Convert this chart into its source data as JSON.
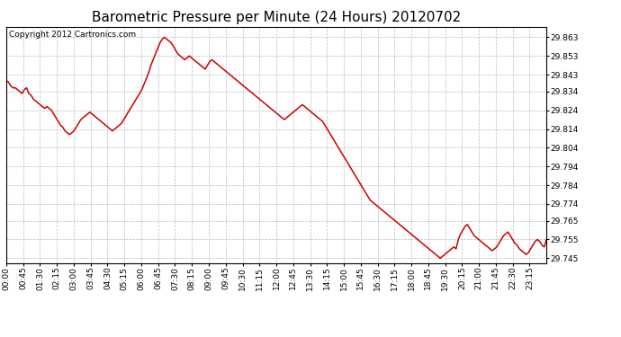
{
  "title": "Barometric Pressure per Minute (24 Hours) 20120702",
  "copyright_text": "Copyright 2012 Cartronics.com",
  "line_color": "#cc0000",
  "background_color": "#ffffff",
  "grid_color": "#bbbbbb",
  "x_tick_labels": [
    "00:00",
    "00:45",
    "01:30",
    "02:15",
    "03:00",
    "03:45",
    "04:30",
    "05:15",
    "06:00",
    "06:45",
    "07:30",
    "08:15",
    "09:00",
    "09:45",
    "10:30",
    "11:15",
    "12:00",
    "12:45",
    "13:30",
    "14:15",
    "15:00",
    "15:45",
    "16:30",
    "17:15",
    "18:00",
    "18:45",
    "19:30",
    "20:15",
    "21:00",
    "21:45",
    "22:30",
    "23:15"
  ],
  "y_tick_labels": [
    29.745,
    29.755,
    29.765,
    29.774,
    29.784,
    29.794,
    29.804,
    29.814,
    29.824,
    29.834,
    29.843,
    29.853,
    29.863
  ],
  "ylim": [
    29.7425,
    29.8685
  ],
  "title_fontsize": 11,
  "copyright_fontsize": 6.5,
  "tick_fontsize": 6.5,
  "line_width": 1.1,
  "pressure_data": [
    29.84,
    29.839,
    29.837,
    29.836,
    29.836,
    29.835,
    29.834,
    29.833,
    29.835,
    29.836,
    29.833,
    29.832,
    29.83,
    29.829,
    29.828,
    29.827,
    29.826,
    29.825,
    29.826,
    29.825,
    29.824,
    29.822,
    29.82,
    29.818,
    29.816,
    29.815,
    29.813,
    29.812,
    29.811,
    29.812,
    29.813,
    29.815,
    29.817,
    29.819,
    29.82,
    29.821,
    29.822,
    29.823,
    29.822,
    29.821,
    29.82,
    29.819,
    29.818,
    29.817,
    29.816,
    29.815,
    29.814,
    29.813,
    29.814,
    29.815,
    29.816,
    29.817,
    29.819,
    29.821,
    29.823,
    29.825,
    29.827,
    29.829,
    29.831,
    29.833,
    29.835,
    29.838,
    29.841,
    29.844,
    29.848,
    29.851,
    29.854,
    29.857,
    29.86,
    29.862,
    29.863,
    29.862,
    29.861,
    29.86,
    29.858,
    29.856,
    29.854,
    29.853,
    29.852,
    29.851,
    29.852,
    29.853,
    29.852,
    29.851,
    29.85,
    29.849,
    29.848,
    29.847,
    29.846,
    29.848,
    29.85,
    29.851,
    29.85,
    29.849,
    29.848,
    29.847,
    29.846,
    29.845,
    29.844,
    29.843,
    29.842,
    29.841,
    29.84,
    29.839,
    29.838,
    29.837,
    29.836,
    29.835,
    29.834,
    29.833,
    29.832,
    29.831,
    29.83,
    29.829,
    29.828,
    29.827,
    29.826,
    29.825,
    29.824,
    29.823,
    29.822,
    29.821,
    29.82,
    29.819,
    29.82,
    29.821,
    29.822,
    29.823,
    29.824,
    29.825,
    29.826,
    29.827,
    29.826,
    29.825,
    29.824,
    29.823,
    29.822,
    29.821,
    29.82,
    29.819,
    29.818,
    29.816,
    29.814,
    29.812,
    29.81,
    29.808,
    29.806,
    29.804,
    29.802,
    29.8,
    29.798,
    29.796,
    29.794,
    29.792,
    29.79,
    29.788,
    29.786,
    29.784,
    29.782,
    29.78,
    29.778,
    29.776,
    29.775,
    29.774,
    29.773,
    29.772,
    29.771,
    29.77,
    29.769,
    29.768,
    29.767,
    29.766,
    29.765,
    29.764,
    29.763,
    29.762,
    29.761,
    29.76,
    29.759,
    29.758,
    29.757,
    29.756,
    29.755,
    29.754,
    29.753,
    29.752,
    29.751,
    29.75,
    29.749,
    29.748,
    29.747,
    29.746,
    29.745,
    29.746,
    29.747,
    29.748,
    29.749,
    29.75,
    29.751,
    29.75,
    29.755,
    29.758,
    29.76,
    29.762,
    29.763,
    29.761,
    29.759,
    29.757,
    29.756,
    29.755,
    29.754,
    29.753,
    29.752,
    29.751,
    29.75,
    29.749,
    29.75,
    29.751,
    29.753,
    29.755,
    29.757,
    29.758,
    29.759,
    29.757,
    29.755,
    29.753,
    29.752,
    29.75,
    29.749,
    29.748,
    29.747,
    29.748,
    29.75,
    29.752,
    29.754,
    29.755,
    29.754,
    29.752,
    29.751,
    29.755
  ]
}
